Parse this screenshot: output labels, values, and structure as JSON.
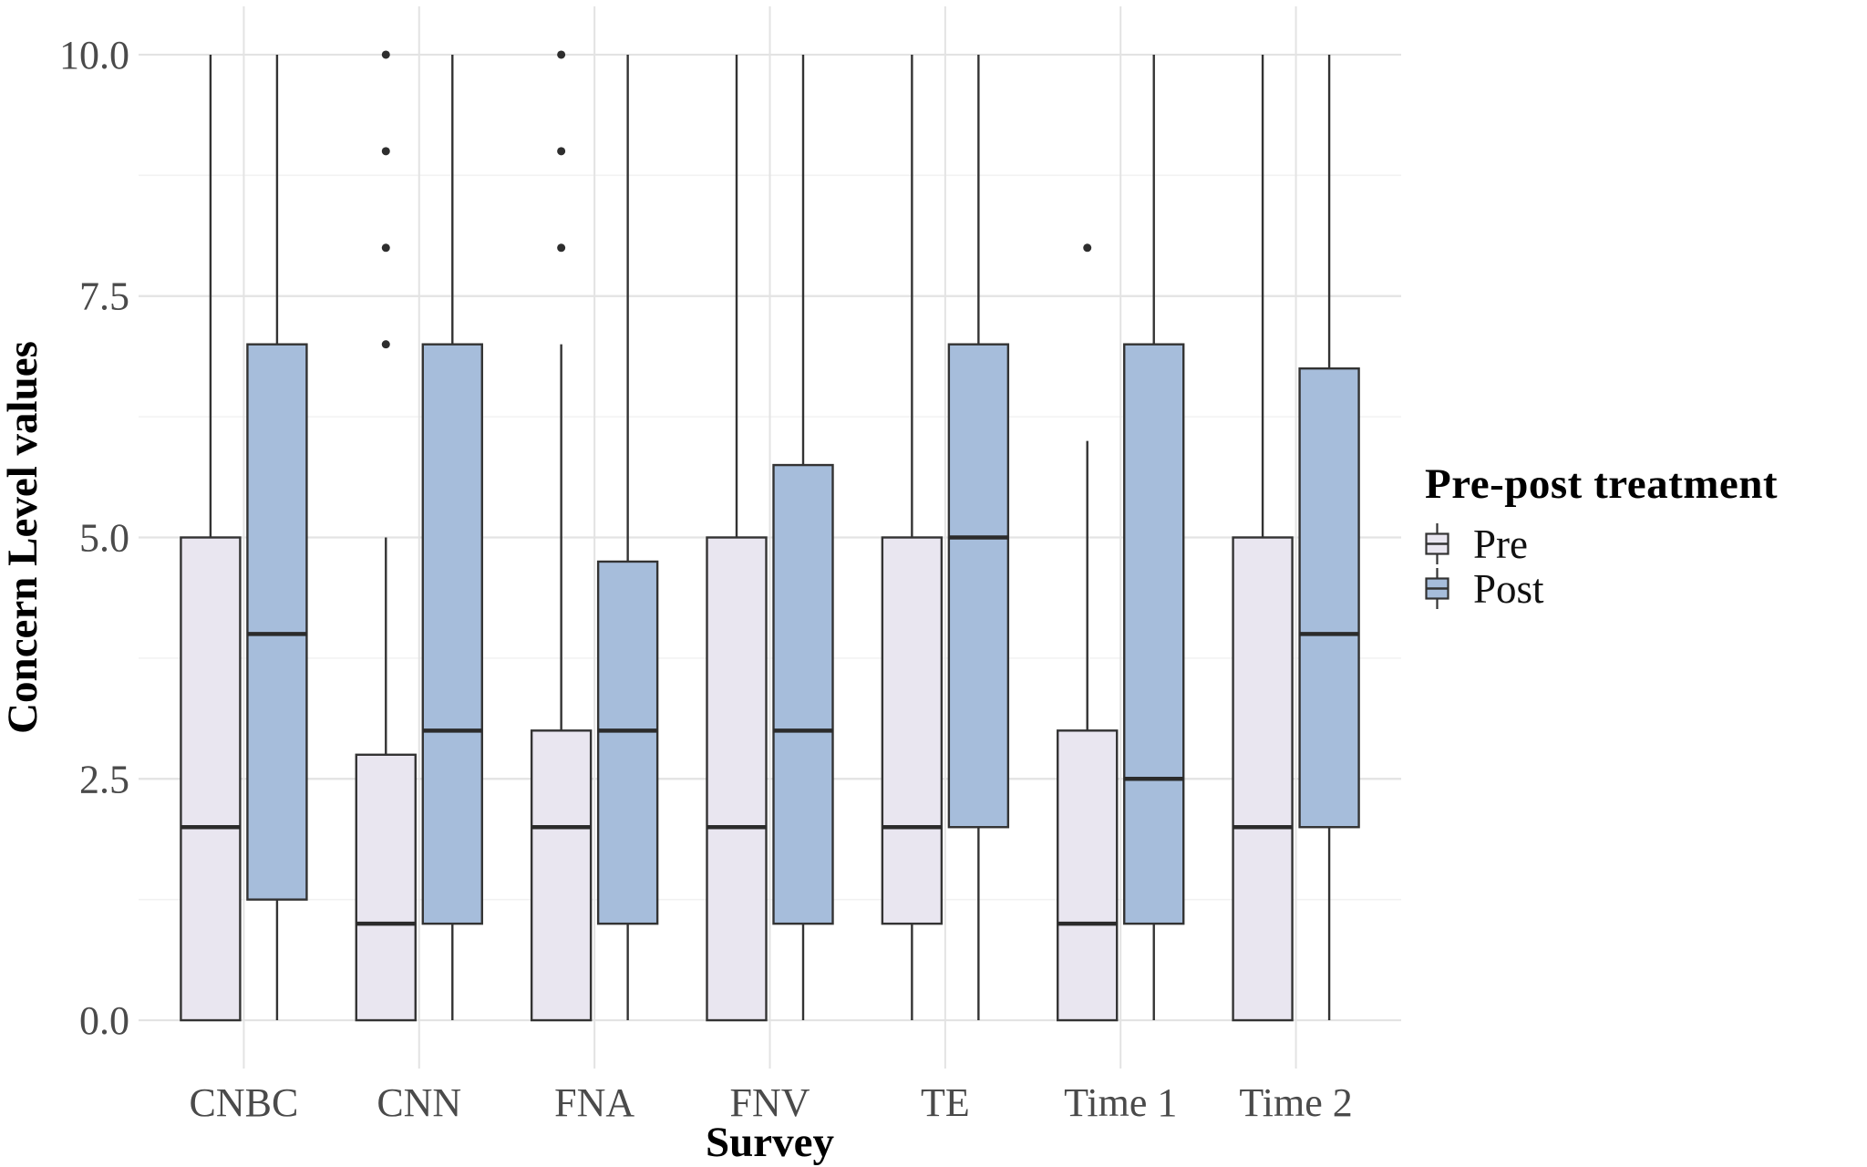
{
  "chart_data": {
    "type": "boxplot",
    "title": "",
    "xlabel": "Survey",
    "ylabel": "Concern Level values",
    "categories": [
      "CNBC",
      "CNN",
      "FNA",
      "FNV",
      "TE",
      "Time 1",
      "Time 2"
    ],
    "y_ticks": [
      0,
      2.5,
      5,
      7.5,
      10
    ],
    "y_tick_labels": [
      "0.0",
      "2.5",
      "5.0",
      "7.5",
      "10.0"
    ],
    "minor_gridlines": [
      1.25,
      3.75,
      6.25,
      8.75
    ],
    "ylim": [
      -0.5,
      10.5
    ],
    "grid": "horizontal major+minor, vertical at category centers",
    "legend": {
      "title": "Pre-post treatment",
      "position": "right",
      "entries": [
        {
          "label": "Pre"
        },
        {
          "label": "Post"
        }
      ]
    },
    "series": [
      {
        "name": "Pre",
        "fill": "#E9E6F0",
        "boxes": [
          {
            "category": "CNBC",
            "whisker_low": 0,
            "q1": 0,
            "median": 2,
            "q3": 5,
            "whisker_high": 10,
            "outliers": []
          },
          {
            "category": "CNN",
            "whisker_low": 0,
            "q1": 0,
            "median": 1,
            "q3": 2.75,
            "whisker_high": 5,
            "outliers": [
              7,
              8,
              9,
              10
            ]
          },
          {
            "category": "FNA",
            "whisker_low": 0,
            "q1": 0,
            "median": 2,
            "q3": 3,
            "whisker_high": 7,
            "outliers": [
              8,
              9,
              10
            ]
          },
          {
            "category": "FNV",
            "whisker_low": 0,
            "q1": 0,
            "median": 2,
            "q3": 5,
            "whisker_high": 10,
            "outliers": []
          },
          {
            "category": "TE",
            "whisker_low": 0,
            "q1": 1,
            "median": 2,
            "q3": 5,
            "whisker_high": 10,
            "outliers": []
          },
          {
            "category": "Time 1",
            "whisker_low": 0,
            "q1": 0,
            "median": 1,
            "q3": 3,
            "whisker_high": 6,
            "outliers": [
              8
            ]
          },
          {
            "category": "Time 2",
            "whisker_low": 0,
            "q1": 0,
            "median": 2,
            "q3": 5,
            "whisker_high": 10,
            "outliers": []
          }
        ]
      },
      {
        "name": "Post",
        "fill": "#A6BDDB",
        "boxes": [
          {
            "category": "CNBC",
            "whisker_low": 0,
            "q1": 1.25,
            "median": 4,
            "q3": 7,
            "whisker_high": 10,
            "outliers": []
          },
          {
            "category": "CNN",
            "whisker_low": 0,
            "q1": 1,
            "median": 3,
            "q3": 7,
            "whisker_high": 10,
            "outliers": []
          },
          {
            "category": "FNA",
            "whisker_low": 0,
            "q1": 1,
            "median": 3,
            "q3": 4.75,
            "whisker_high": 10,
            "outliers": []
          },
          {
            "category": "FNV",
            "whisker_low": 0,
            "q1": 1,
            "median": 3,
            "q3": 5.75,
            "whisker_high": 10,
            "outliers": []
          },
          {
            "category": "TE",
            "whisker_low": 0,
            "q1": 2,
            "median": 5,
            "q3": 7,
            "whisker_high": 10,
            "outliers": []
          },
          {
            "category": "Time 1",
            "whisker_low": 0,
            "q1": 1,
            "median": 2.5,
            "q3": 7,
            "whisker_high": 10,
            "outliers": []
          },
          {
            "category": "Time 2",
            "whisker_low": 0,
            "q1": 2,
            "median": 4,
            "q3": 6.75,
            "whisker_high": 10,
            "outliers": []
          }
        ]
      }
    ]
  },
  "style": {
    "background": "#FFFFFF",
    "pre_fill": "#E9E6F0",
    "post_fill": "#A6BDDB",
    "stroke": "#333333",
    "median_color": "#2B2B2B",
    "outlier_color": "#2E2E2E",
    "grid_major": "#E3E3E3",
    "grid_minor": "#F2F2F2",
    "tick_label_color": "#4A4A4A",
    "title_color": "#000000"
  }
}
